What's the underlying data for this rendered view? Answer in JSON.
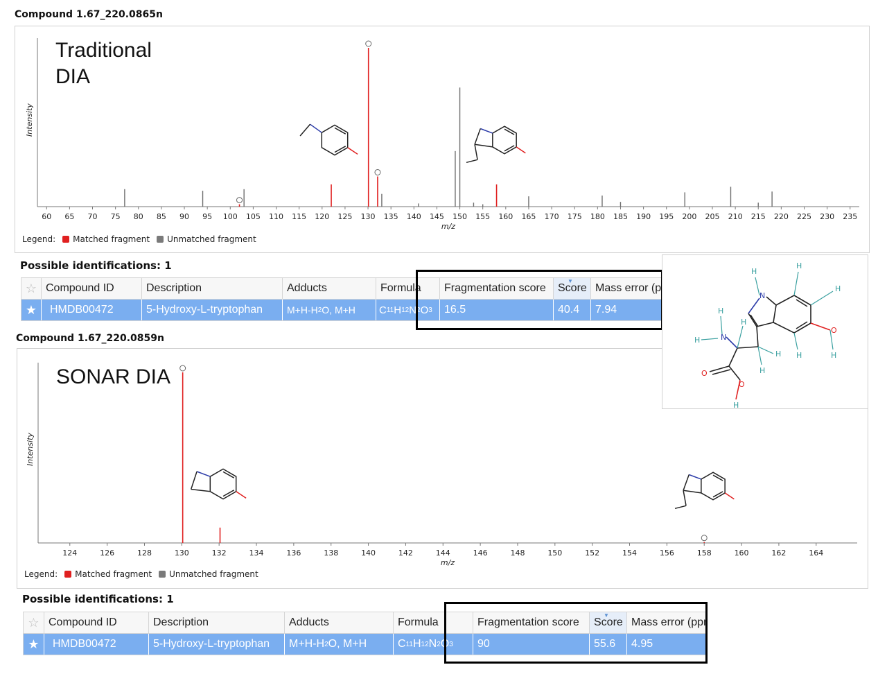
{
  "top": {
    "compound_header": "Compound 1.67_220.0865n",
    "method_label_1": "Traditional",
    "method_label_2": "DIA",
    "legend_label": "Legend:",
    "legend_matched": "Matched fragment",
    "legend_unmatched": "Unmatched fragment",
    "possible": "Possible identifications: 1",
    "columns": [
      "Compound ID",
      "Description",
      "Adducts",
      "Formula",
      "Fragmentation score",
      "Score",
      "Mass error (ppm)"
    ],
    "row": {
      "compound_id": "HMDB00472",
      "description": "5-Hydroxy-L-tryptophan",
      "adducts": "M+H-H2O, M+H",
      "formula": "C11H12N2O3",
      "fragmentation_score": "16.5",
      "score": "40.4",
      "mass_error": "7.94"
    }
  },
  "bottom": {
    "compound_header": "Compound 1.67_220.0859n",
    "method_label": "SONAR DIA",
    "legend_label": "Legend:",
    "legend_matched": "Matched fragment",
    "legend_unmatched": "Unmatched fragment",
    "possible": "Possible identifications: 1",
    "columns": [
      "Compound ID",
      "Description",
      "Adducts",
      "Formula",
      "Fragmentation score",
      "Score",
      "Mass error (ppm)"
    ],
    "row": {
      "compound_id": "HMDB00472",
      "description": "5-Hydroxy-L-tryptophan",
      "adducts": "M+H-H2O, M+H",
      "formula": "C11H12N2O3",
      "fragmentation_score": "90",
      "score": "55.6",
      "mass_error": "4.95"
    }
  },
  "colors": {
    "matched": "#e02020",
    "unmatched": "#6e6e6e",
    "selected_row": "#7aaef0",
    "nitrogen": "#2020c0",
    "oxygen": "#e02020",
    "hydrogen": "#3aa0a0"
  },
  "chart_data": [
    {
      "type": "bar",
      "xlabel": "m/z",
      "ylabel": "Intensity",
      "xlim": [
        58,
        237
      ],
      "ylim": [
        0,
        100
      ],
      "xticks": [
        60,
        65,
        70,
        75,
        80,
        85,
        90,
        95,
        100,
        105,
        110,
        115,
        120,
        125,
        130,
        135,
        140,
        145,
        150,
        155,
        160,
        165,
        170,
        175,
        180,
        185,
        190,
        195,
        200,
        205,
        210,
        215,
        220,
        225,
        230,
        235
      ],
      "series": [
        {
          "name": "Matched fragment",
          "x": [
            102.0,
            122.0,
            130.1,
            132.1,
            158.0
          ],
          "y": [
            1.5,
            14,
            100,
            19,
            14
          ],
          "circled": [
            true,
            false,
            true,
            true,
            false
          ]
        },
        {
          "name": "Unmatched fragment",
          "x": [
            77.0,
            94.0,
            103.0,
            133.0,
            141.0,
            149.0,
            150.0,
            153.0,
            155.0,
            165.0,
            181.0,
            185.0,
            199.0,
            209.0,
            215.0,
            218.0
          ],
          "y": [
            11,
            10,
            11,
            8,
            2,
            35,
            75,
            2.5,
            1.5,
            6.5,
            7,
            3,
            9,
            12.5,
            2.5,
            9.5
          ]
        }
      ]
    },
    {
      "type": "bar",
      "xlabel": "m/z",
      "ylabel": "Intensity",
      "xlim": [
        122.3,
        166.2
      ],
      "ylim": [
        0,
        100
      ],
      "xticks": [
        124,
        126,
        128,
        130,
        132,
        134,
        136,
        138,
        140,
        142,
        144,
        146,
        148,
        150,
        152,
        154,
        156,
        158,
        160,
        162,
        164
      ],
      "series": [
        {
          "name": "Matched fragment",
          "x": [
            130.05,
            132.05,
            158.0
          ],
          "y": [
            100,
            9,
            0.5
          ],
          "circled": [
            true,
            false,
            true
          ]
        },
        {
          "name": "Unmatched fragment",
          "x": [],
          "y": []
        }
      ]
    }
  ]
}
